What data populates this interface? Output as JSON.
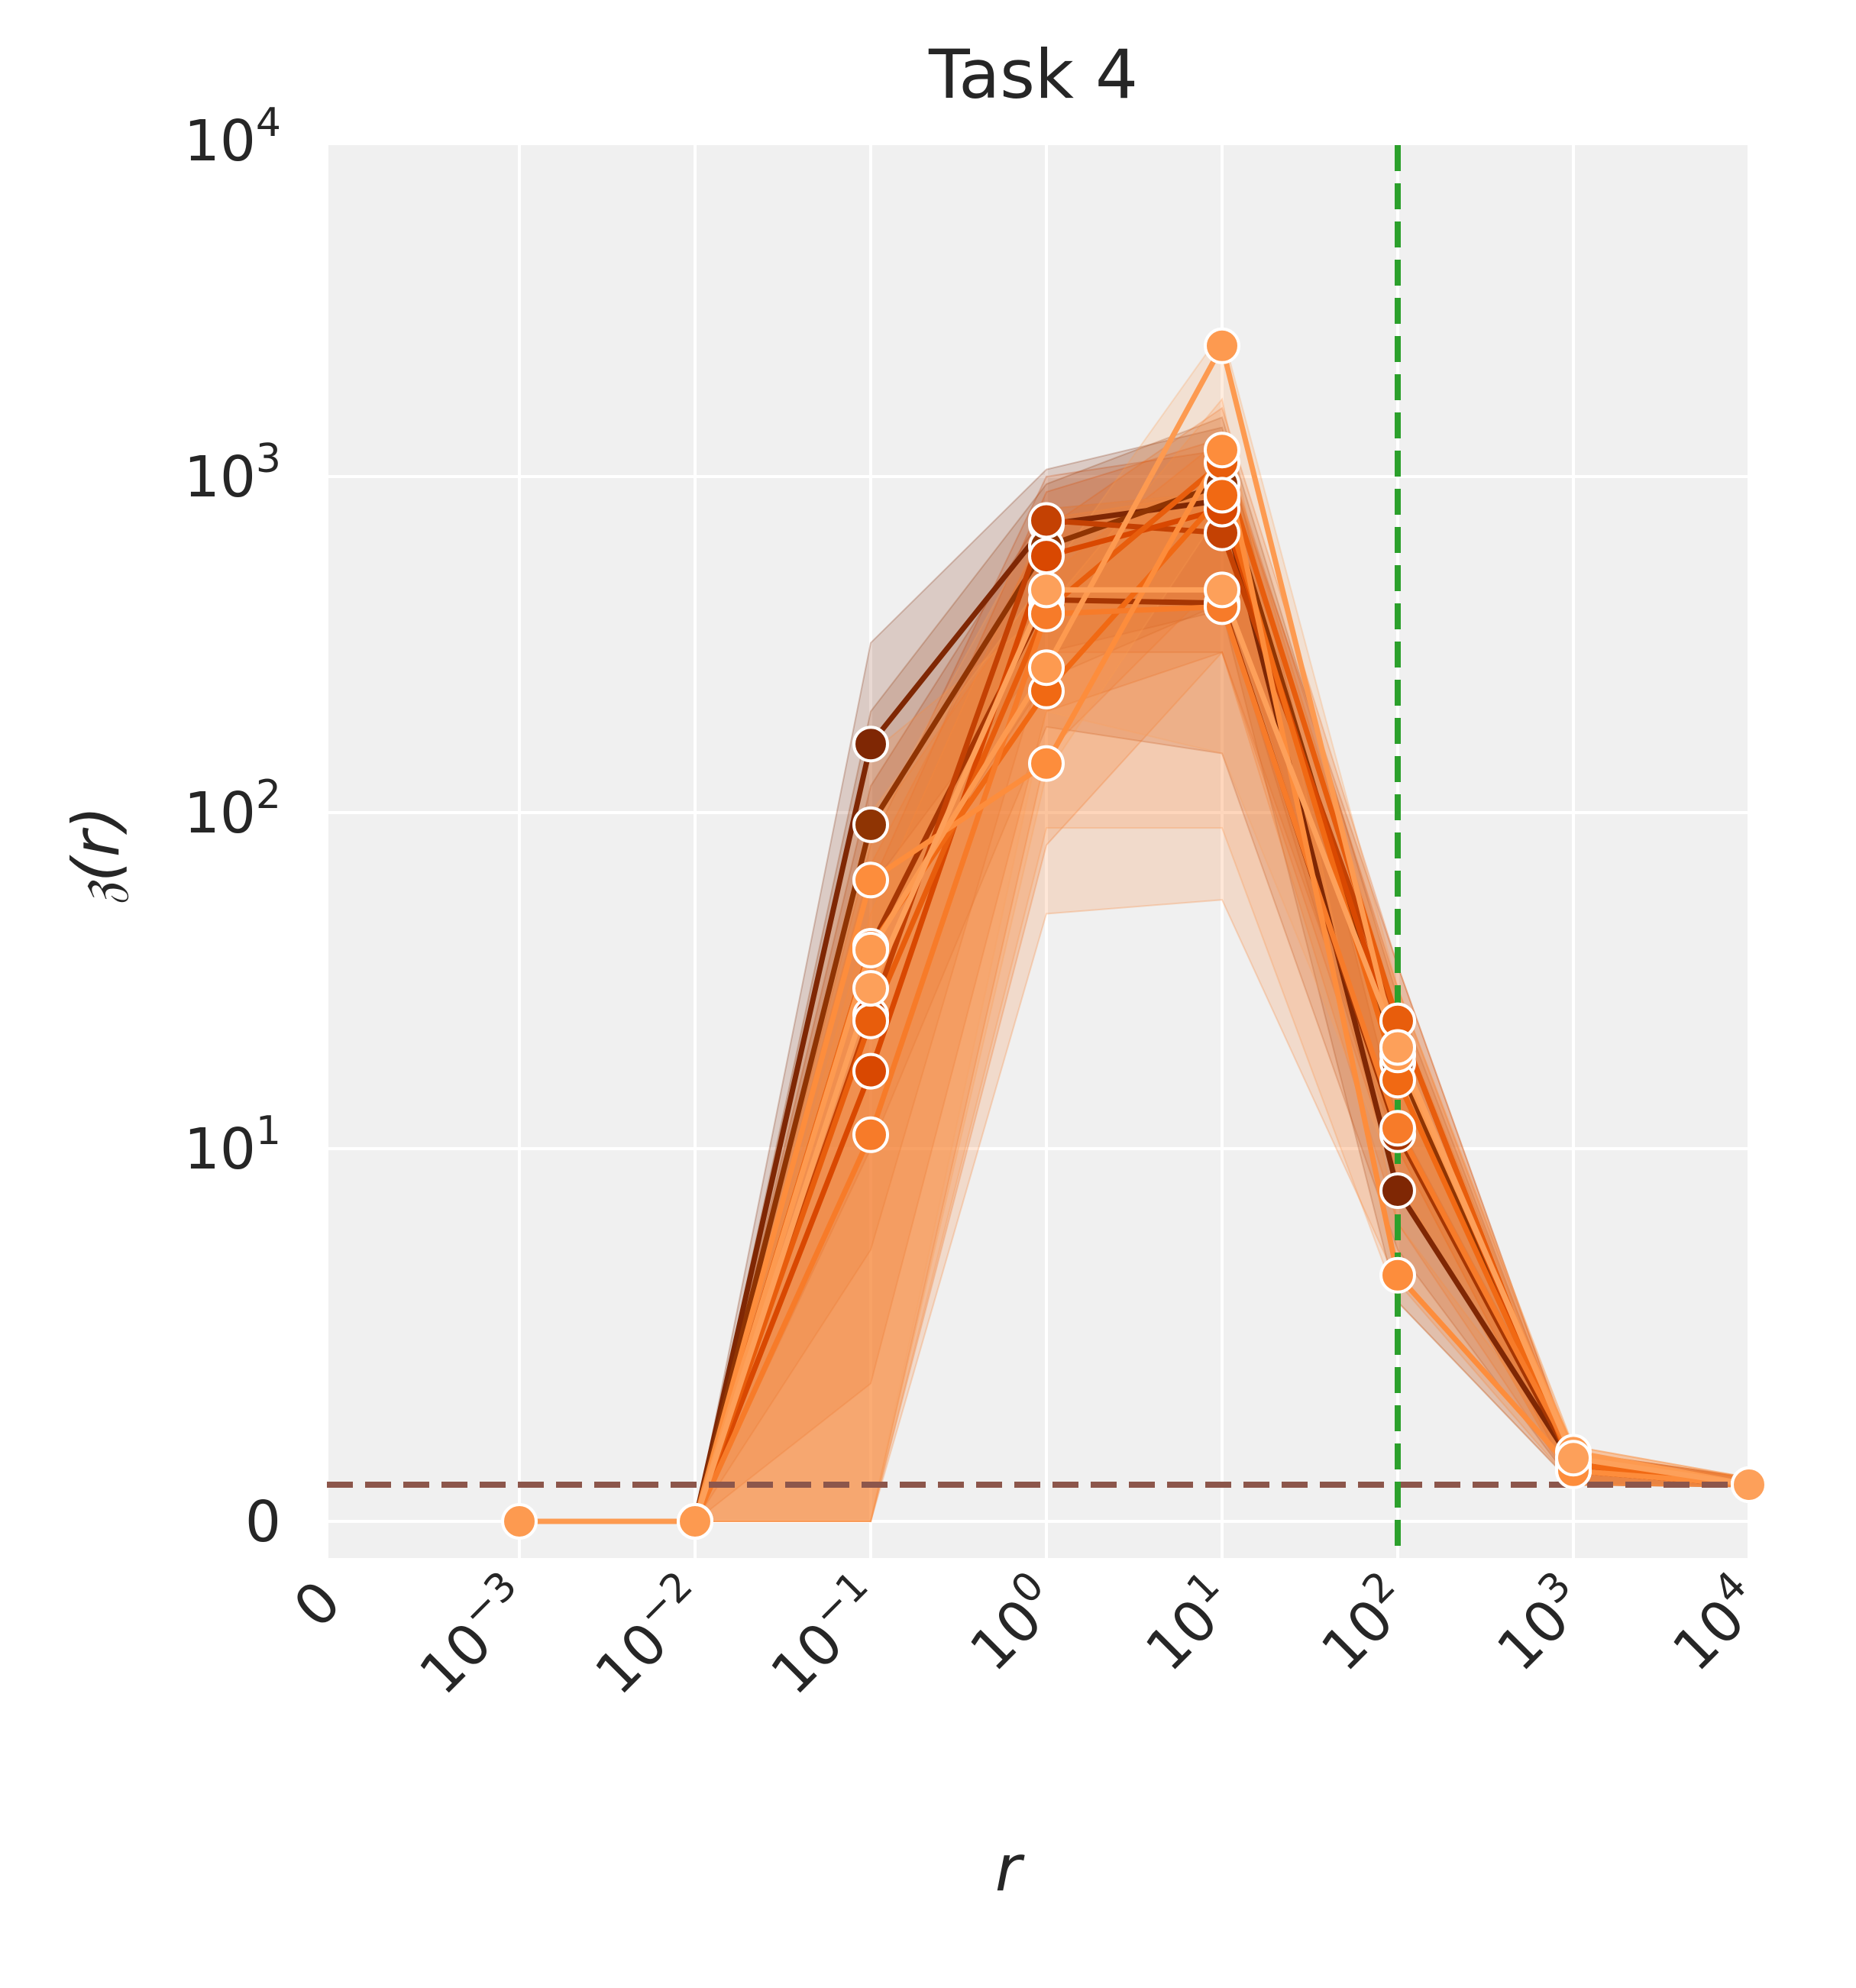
{
  "chart_data": {
    "type": "line",
    "title": "Task 4",
    "xlabel": "r",
    "ylabel": "𝔷(r)",
    "x_scale": "symlog",
    "y_scale": "symlog",
    "x_ticks": [
      {
        "value": 0,
        "base": "0",
        "exp": ""
      },
      {
        "value": 0.001,
        "base": "10",
        "exp": "−3"
      },
      {
        "value": 0.01,
        "base": "10",
        "exp": "−2"
      },
      {
        "value": 0.1,
        "base": "10",
        "exp": "−1"
      },
      {
        "value": 1,
        "base": "10",
        "exp": "0"
      },
      {
        "value": 10,
        "base": "10",
        "exp": "1"
      },
      {
        "value": 100,
        "base": "10",
        "exp": "2"
      },
      {
        "value": 1000,
        "base": "10",
        "exp": "3"
      },
      {
        "value": 10000,
        "base": "10",
        "exp": "4"
      }
    ],
    "y_ticks": [
      {
        "value": 0,
        "base": "0",
        "exp": ""
      },
      {
        "value": 10,
        "base": "10",
        "exp": "1"
      },
      {
        "value": 100,
        "base": "10",
        "exp": "2"
      },
      {
        "value": 1000,
        "base": "10",
        "exp": "3"
      },
      {
        "value": 10000,
        "base": "10",
        "exp": "4"
      }
    ],
    "grid": true,
    "reference_lines": [
      {
        "orientation": "horizontal",
        "value": 1,
        "color": "#8c564b",
        "style": "dashed"
      },
      {
        "orientation": "vertical",
        "value": 100,
        "color": "#2ca02c",
        "style": "dashed"
      }
    ],
    "x": [
      0.01,
      0.1,
      1,
      10,
      100,
      1000,
      10000
    ],
    "series": [
      {
        "color": "#7f2704",
        "values": [
          0,
          160,
          720,
          850,
          7.5,
          1.15,
          1.0
        ],
        "band_low": [
          0,
          60,
          300,
          400,
          3.5,
          1.0,
          0.95
        ],
        "band_high": [
          0,
          320,
          1050,
          1400,
          12,
          1.25,
          1.05
        ]
      },
      {
        "color": "#8f3403",
        "values": [
          0,
          92,
          620,
          950,
          18,
          1.1,
          1.0
        ],
        "band_low": [
          0,
          40,
          250,
          420,
          8,
          1.0,
          0.95
        ],
        "band_high": [
          0,
          200,
          950,
          1500,
          28,
          1.2,
          1.05
        ]
      },
      {
        "color": "#a63603",
        "values": [
          0,
          40,
          430,
          420,
          11,
          1.15,
          1.0
        ],
        "band_low": [
          0,
          10,
          180,
          150,
          5,
          1.0,
          0.95
        ],
        "band_high": [
          0,
          120,
          800,
          900,
          20,
          1.25,
          1.05
        ]
      },
      {
        "color": "#c44103",
        "values": [
          0,
          25,
          740,
          680,
          24,
          1.1,
          1.0
        ],
        "band_low": [
          0,
          5,
          300,
          300,
          10,
          1.0,
          0.95
        ],
        "band_high": [
          0,
          80,
          1000,
          1200,
          35,
          1.2,
          1.05
        ]
      },
      {
        "color": "#d94801",
        "values": [
          0,
          17,
          580,
          800,
          20,
          1.15,
          1.0
        ],
        "band_low": [
          0,
          2,
          200,
          300,
          8,
          1.0,
          0.95
        ],
        "band_high": [
          0,
          60,
          900,
          1300,
          30,
          1.25,
          1.05
        ]
      },
      {
        "color": "#e85d0c",
        "values": [
          0,
          24,
          400,
          1100,
          24,
          1.1,
          1.0
        ],
        "band_low": [
          0,
          0,
          150,
          500,
          10,
          1.0,
          0.95
        ],
        "band_high": [
          0,
          70,
          700,
          1600,
          35,
          1.2,
          1.05
        ]
      },
      {
        "color": "#f16913",
        "values": [
          0,
          40,
          230,
          880,
          16,
          1.15,
          1.0
        ],
        "band_low": [
          0,
          0,
          80,
          300,
          6,
          1.0,
          0.95
        ],
        "band_high": [
          0,
          90,
          500,
          1300,
          25,
          1.25,
          1.05
        ]
      },
      {
        "color": "#f77b29",
        "values": [
          0,
          11,
          390,
          410,
          11.5,
          1.2,
          1.0
        ],
        "band_low": [
          0,
          0,
          50,
          55,
          4,
          1.0,
          0.95
        ],
        "band_high": [
          0,
          50,
          750,
          900,
          20,
          1.3,
          1.05
        ]
      },
      {
        "color": "#fd8d3c",
        "values": [
          0,
          63,
          140,
          1200,
          4.2,
          1.1,
          1.0
        ],
        "band_low": [
          0,
          0,
          90,
          90,
          3.5,
          1.0,
          0.95
        ],
        "band_high": [
          0,
          150,
          400,
          1700,
          6,
          1.2,
          1.05
        ]
      },
      {
        "color": "#fd9a50",
        "values": [
          0,
          39,
          270,
          2450,
          19,
          1.25,
          1.0
        ],
        "band_low": [
          0,
          0,
          130,
          800,
          8,
          1.0,
          0.95
        ],
        "band_high": [
          0,
          100,
          500,
          2700,
          30,
          1.3,
          1.05
        ]
      },
      {
        "color": "#fda05a",
        "values": [
          0,
          30,
          460,
          460,
          20,
          1.2,
          1.0
        ],
        "band_low": [
          0,
          0,
          200,
          150,
          8,
          1.0,
          0.95
        ],
        "band_high": [
          0,
          90,
          800,
          900,
          30,
          1.3,
          1.05
        ]
      }
    ],
    "extra_points": [
      {
        "color": "#fd9a50",
        "x": [
          0.001,
          0.01
        ],
        "y": [
          0,
          0
        ]
      }
    ]
  }
}
